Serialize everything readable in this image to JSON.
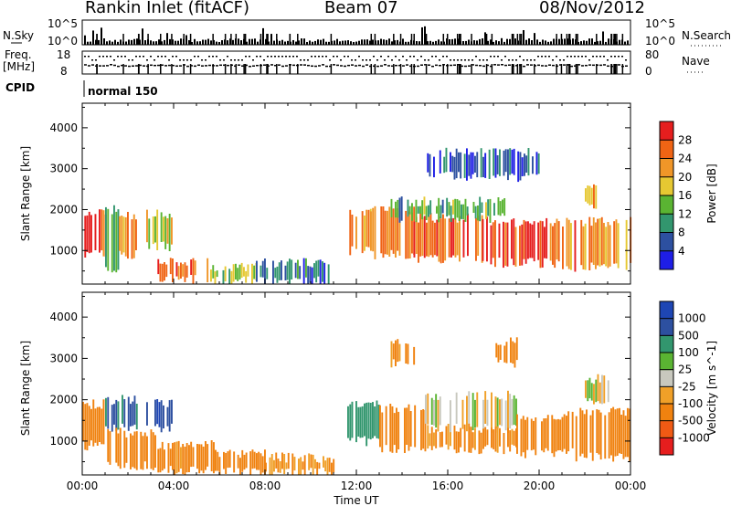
{
  "header": {
    "station": "Rankin Inlet (fitACF)",
    "beam": "Beam 07",
    "date": "08/Nov/2012"
  },
  "summary_panel": {
    "nsky_label": "N.Sky",
    "nsky_ticks": [
      "10^5",
      "10^0"
    ],
    "nsearch_label": "N.Search",
    "nsearch_ticks": [
      "10^5",
      "10^0"
    ],
    "freq_label": "Freq.",
    "freq_unit": "[MHz]",
    "freq_ticks": [
      "18",
      "8"
    ],
    "nave_label": "Nave",
    "nave_ticks": [
      "80",
      "0"
    ],
    "cpid_label": "CPID",
    "cpid_value": "normal 150"
  },
  "colors": {
    "power": [
      "#1e1ee6",
      "#2d50a0",
      "#32966e",
      "#5ab432",
      "#e6c832",
      "#f09628",
      "#f06414",
      "#e61e1e"
    ],
    "velocity": [
      "#e61e1e",
      "#f05a14",
      "#f0820f",
      "#f0a028",
      "#c8c8be",
      "#5ab432",
      "#32966e",
      "#2d50a0",
      "#1e46b4"
    ]
  },
  "chart_data": [
    {
      "type": "heatmap",
      "title": "",
      "xlabel": "",
      "ylabel": "Slant Range [km]",
      "xlim": [
        0,
        24
      ],
      "ylim": [
        180,
        4600
      ],
      "y_ticks": [
        "1000",
        "2000",
        "3000",
        "4000"
      ],
      "colorbar": {
        "label": "Power [dB]",
        "ticks": [
          "4",
          "8",
          "12",
          "16",
          "20",
          "24",
          "28"
        ],
        "range": [
          0,
          32
        ]
      },
      "regions": [
        {
          "t0": 0.0,
          "t1": 1.0,
          "r0": 900,
          "r1": 1900,
          "value": 27
        },
        {
          "t0": 1.0,
          "t1": 1.6,
          "r0": 500,
          "r1": 2000,
          "value": 14
        },
        {
          "t0": 1.6,
          "t1": 2.4,
          "r0": 900,
          "r1": 1850,
          "value": 22
        },
        {
          "t0": 2.8,
          "t1": 3.9,
          "r0": 1100,
          "r1": 1900,
          "value": 18
        },
        {
          "t0": 3.2,
          "t1": 5.6,
          "r0": 300,
          "r1": 700,
          "value": 25
        },
        {
          "t0": 5.6,
          "t1": 7.6,
          "r0": 250,
          "r1": 600,
          "value": 14
        },
        {
          "t0": 7.6,
          "t1": 11.0,
          "r0": 250,
          "r1": 700,
          "value": 8
        },
        {
          "t0": 11.6,
          "t1": 12.6,
          "r0": 1000,
          "r1": 1900,
          "value": 22
        },
        {
          "t0": 12.6,
          "t1": 14.5,
          "r0": 900,
          "r1": 2000,
          "value": 24
        },
        {
          "t0": 14.5,
          "t1": 17.5,
          "r0": 800,
          "r1": 1800,
          "value": 26
        },
        {
          "t0": 17.5,
          "t1": 21.0,
          "r0": 700,
          "r1": 1700,
          "value": 28
        },
        {
          "t0": 21.0,
          "t1": 24.0,
          "r0": 600,
          "r1": 1700,
          "value": 24
        },
        {
          "t0": 13.5,
          "t1": 18.5,
          "r0": 1800,
          "r1": 2200,
          "value": 12
        },
        {
          "t0": 15.0,
          "t1": 20.0,
          "r0": 2800,
          "r1": 3400,
          "value": 6
        },
        {
          "t0": 22.0,
          "t1": 22.6,
          "r0": 2100,
          "r1": 2500,
          "value": 21
        }
      ]
    },
    {
      "type": "heatmap",
      "title": "",
      "xlabel": "Time UT",
      "ylabel": "Slant Range [km]",
      "xlim": [
        0,
        24
      ],
      "ylim": [
        180,
        4600
      ],
      "x_ticks": [
        "00:00",
        "04:00",
        "08:00",
        "12:00",
        "16:00",
        "20:00",
        "00:00"
      ],
      "y_ticks": [
        "1000",
        "2000",
        "3000",
        "4000"
      ],
      "colorbar": {
        "label": "Velocity [m s^-1]",
        "ticks": [
          "1000",
          "500",
          "100",
          "25",
          "-25",
          "-100",
          "-500",
          "-1000"
        ]
      },
      "regions": [
        {
          "t0": 0.0,
          "t1": 1.0,
          "r0": 900,
          "r1": 1900,
          "value": -300
        },
        {
          "t0": 1.0,
          "t1": 2.4,
          "r0": 1300,
          "r1": 2000,
          "value": 600
        },
        {
          "t0": 1.0,
          "t1": 3.2,
          "r0": 400,
          "r1": 1200,
          "value": -200
        },
        {
          "t0": 2.8,
          "t1": 3.9,
          "r0": 1300,
          "r1": 1900,
          "value": 800
        },
        {
          "t0": 3.2,
          "t1": 5.8,
          "r0": 300,
          "r1": 900,
          "value": -150
        },
        {
          "t0": 5.8,
          "t1": 8.0,
          "r0": 250,
          "r1": 700,
          "value": -300
        },
        {
          "t0": 8.0,
          "t1": 11.0,
          "r0": 250,
          "r1": 600,
          "value": -100
        },
        {
          "t0": 11.6,
          "t1": 13.0,
          "r0": 1000,
          "r1": 1900,
          "value": 200
        },
        {
          "t0": 13.0,
          "t1": 15.0,
          "r0": 800,
          "r1": 1800,
          "value": -200
        },
        {
          "t0": 15.0,
          "t1": 19.0,
          "r0": 1300,
          "r1": 2100,
          "value": 0
        },
        {
          "t0": 15.0,
          "t1": 19.0,
          "r0": 800,
          "r1": 1300,
          "value": -150
        },
        {
          "t0": 19.0,
          "t1": 21.5,
          "r0": 700,
          "r1": 1600,
          "value": -300
        },
        {
          "t0": 21.5,
          "t1": 24.0,
          "r0": 600,
          "r1": 1700,
          "value": -200
        },
        {
          "t0": 13.5,
          "t1": 14.5,
          "r0": 2900,
          "r1": 3400,
          "value": -150
        },
        {
          "t0": 18.0,
          "t1": 19.0,
          "r0": 2900,
          "r1": 3400,
          "value": -200
        },
        {
          "t0": 22.0,
          "t1": 23.0,
          "r0": 2000,
          "r1": 2500,
          "value": 0
        }
      ]
    }
  ]
}
